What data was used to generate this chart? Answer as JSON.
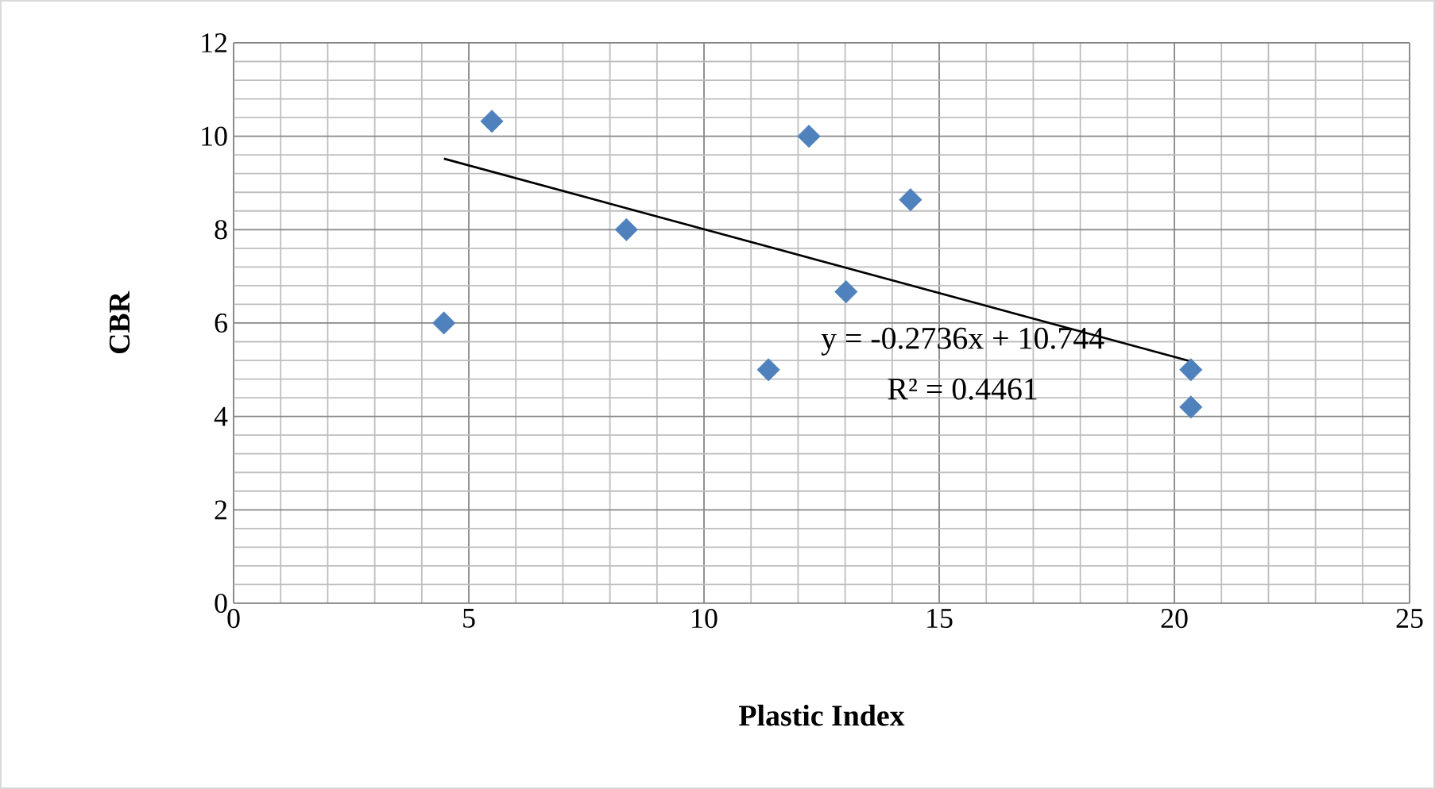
{
  "chart_data": {
    "type": "scatter",
    "xlabel": "Plastic Index",
    "ylabel": "CBR",
    "xlim": [
      0,
      25
    ],
    "ylim": [
      0,
      12
    ],
    "xticks": [
      0,
      5,
      10,
      15,
      20,
      25
    ],
    "yticks": [
      0,
      2,
      4,
      6,
      8,
      10,
      12
    ],
    "grid": true,
    "marker": "diamond",
    "annotations": [
      "y = -0.2736x + 10.744",
      "R² = 0.4461"
    ],
    "series": [
      {
        "color": "#4f81bd",
        "x": [
          4.47,
          5.49,
          8.35,
          11.37,
          12.23,
          14.39,
          13.02,
          20.35,
          20.35
        ],
        "values": [
          6,
          10.32,
          8,
          5,
          10,
          8.64,
          6.67,
          5,
          4.2
        ]
      },
      {
        "type": "line",
        "color": "#000000",
        "marker": "none",
        "x": [
          4.47,
          20.35
        ],
        "values": [
          9.52,
          5.18
        ]
      }
    ]
  }
}
